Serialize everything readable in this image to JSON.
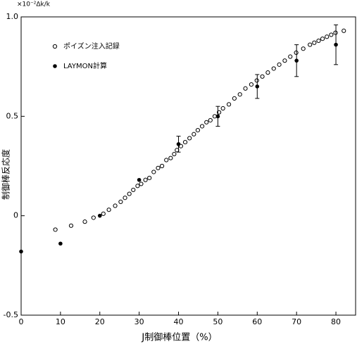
{
  "chart_data": {
    "type": "scatter",
    "y_unit": "×10⁻²Δk/k",
    "xlabel": "J制御棒位置（%）",
    "ylabel": "制御棒反応度",
    "xlim": [
      0,
      85
    ],
    "ylim": [
      -0.5,
      1.0
    ],
    "xticks": [
      0,
      10,
      20,
      30,
      40,
      50,
      60,
      70,
      80
    ],
    "yticks": [
      -0.5,
      0,
      0.5,
      {
        "value": 1.0,
        "label": "1.0"
      }
    ],
    "series": [
      {
        "name": "ポイズン注入記録",
        "marker": "open",
        "color": "#000000",
        "x": [
          8.7,
          12.7,
          16.2,
          18.4,
          20.9,
          22.3,
          23.9,
          25.3,
          26.4,
          27.5,
          28.5,
          29.6,
          30.5,
          31.6,
          32.6,
          33.7,
          34.8,
          35.8,
          36.9,
          38.0,
          38.9,
          39.6,
          40.6,
          41.7,
          42.8,
          43.9,
          44.9,
          46.0,
          47.1,
          48.1,
          49.2,
          50.3,
          51.3,
          52.8,
          54.2,
          55.6,
          57.0,
          58.5,
          59.9,
          61.3,
          62.7,
          64.2,
          65.6,
          67.0,
          68.4,
          69.9,
          71.7,
          73.4,
          74.5,
          75.6,
          76.6,
          77.7,
          78.8,
          79.9,
          82.0
        ],
        "values": [
          -0.07,
          -0.05,
          -0.03,
          -0.01,
          0.01,
          0.03,
          0.05,
          0.07,
          0.09,
          0.11,
          0.13,
          0.15,
          0.16,
          0.18,
          0.19,
          0.22,
          0.24,
          0.25,
          0.28,
          0.29,
          0.31,
          0.33,
          0.35,
          0.37,
          0.39,
          0.41,
          0.43,
          0.45,
          0.47,
          0.48,
          0.5,
          0.52,
          0.54,
          0.56,
          0.59,
          0.61,
          0.64,
          0.66,
          0.68,
          0.7,
          0.72,
          0.74,
          0.76,
          0.78,
          0.8,
          0.82,
          0.84,
          0.86,
          0.87,
          0.88,
          0.89,
          0.9,
          0.91,
          0.92,
          0.93
        ]
      },
      {
        "name": "LAYMON計算",
        "marker": "filled",
        "color": "#000000",
        "x": [
          0,
          10,
          20,
          30,
          40,
          50,
          60,
          70,
          80
        ],
        "values": [
          -0.18,
          -0.14,
          0.0,
          0.18,
          0.36,
          0.5,
          0.65,
          0.78,
          0.86
        ],
        "errors": [
          null,
          null,
          null,
          null,
          0.04,
          0.05,
          0.06,
          0.08,
          0.1
        ]
      }
    ]
  }
}
